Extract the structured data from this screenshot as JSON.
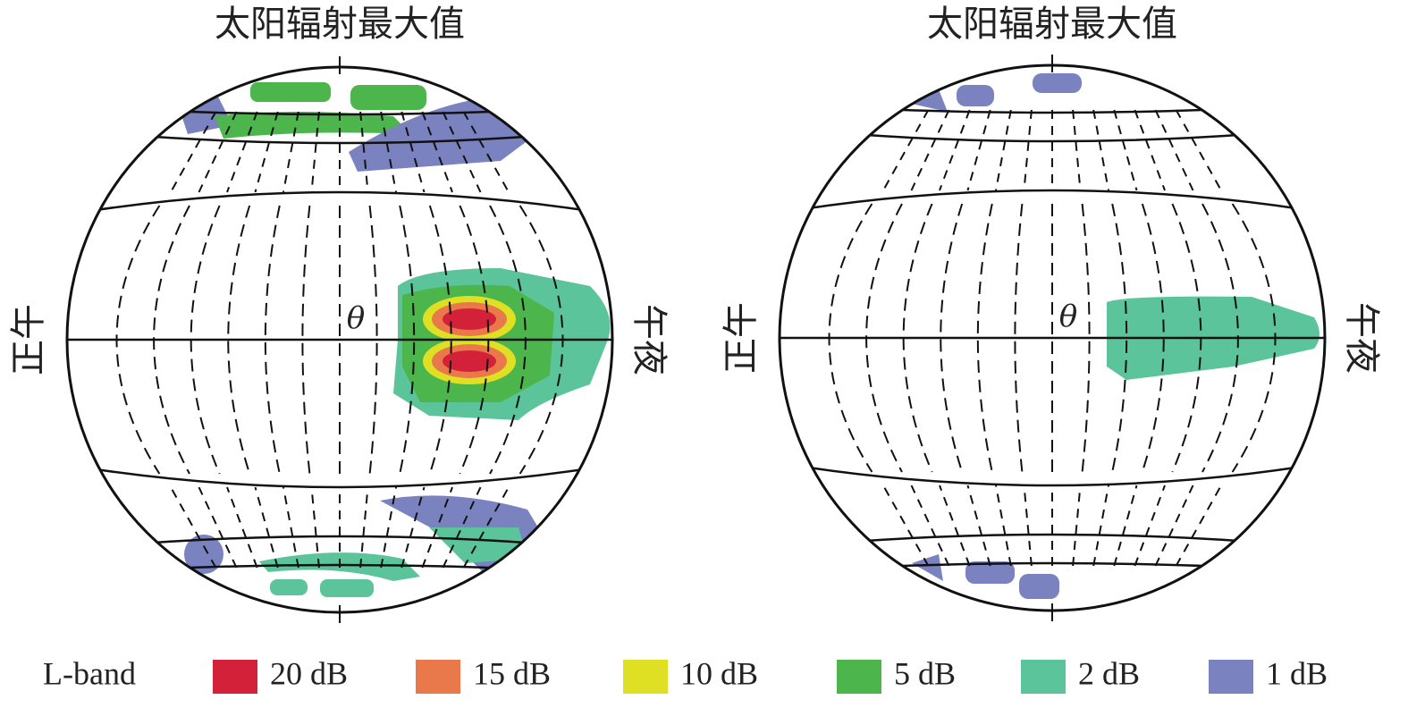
{
  "panels": [
    {
      "title": "太阳辐射最大值",
      "left_label": "正午",
      "right_label": "午夜",
      "angle_label": "θ"
    },
    {
      "title": "太阳辐射最大值",
      "left_label": "正午",
      "right_label": "午夜",
      "angle_label": "θ"
    }
  ],
  "legend": {
    "title": "L-band",
    "items": [
      {
        "label": "20 dB",
        "color": "#d4213a"
      },
      {
        "label": "15 dB",
        "color": "#e9784a"
      },
      {
        "label": "10 dB",
        "color": "#dfe023"
      },
      {
        "label": "5 dB",
        "color": "#4cb54c"
      },
      {
        "label": "2 dB",
        "color": "#5cc49a"
      },
      {
        "label": "1 dB",
        "color": "#7a82c0"
      }
    ]
  }
}
